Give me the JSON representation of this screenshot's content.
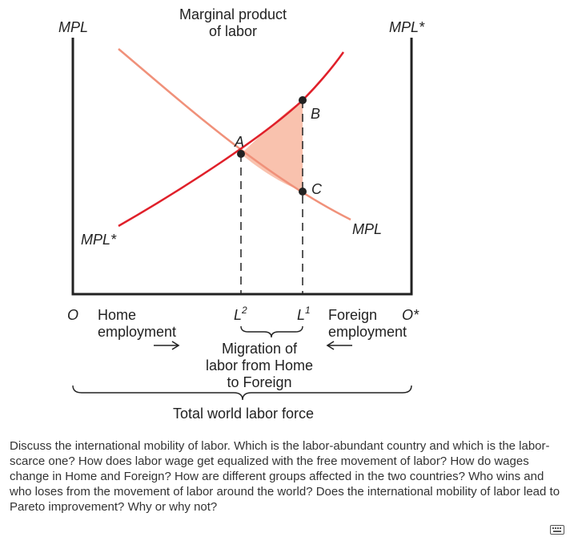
{
  "diagram": {
    "title_line1": "Marginal product",
    "title_line2": "of labor",
    "left_axis_label": "MPL",
    "right_axis_label": "MPL*",
    "home_curve_label": "MPL",
    "foreign_curve_label": "MPL*",
    "point_a": "A",
    "point_b": "B",
    "point_c": "C",
    "origin_home": "O",
    "origin_foreign": "O*",
    "home_employment_line1": "Home",
    "home_employment_line2": "employment",
    "foreign_employment_line1": "Foreign",
    "foreign_employment_line2": "employment",
    "l2_letter": "L",
    "l2_sup": "2",
    "l1_letter": "L",
    "l1_sup": "1",
    "migration_line1": "Migration of",
    "migration_line2": "labor from Home",
    "migration_line3": "to Foreign",
    "total_label": "Total world labor force"
  },
  "colors": {
    "foreign_curve": "#e0202a",
    "home_curve": "#f0917a",
    "gain_triangle": "#f9c2ae",
    "axis": "#222222"
  },
  "question": "Discuss the international mobility of labor. Which is the labor-abundant country and which is the labor-scarce one? How does labor wage get equalized with the free movement of labor? How do wages change in Home and Foreign? How are different groups affected in the two countries? Who wins and who loses from the movement of labor around the world? Does the international mobility of labor lead to Pareto improvement? Why or why not?",
  "keyboard_icon": "keyboard-icon"
}
